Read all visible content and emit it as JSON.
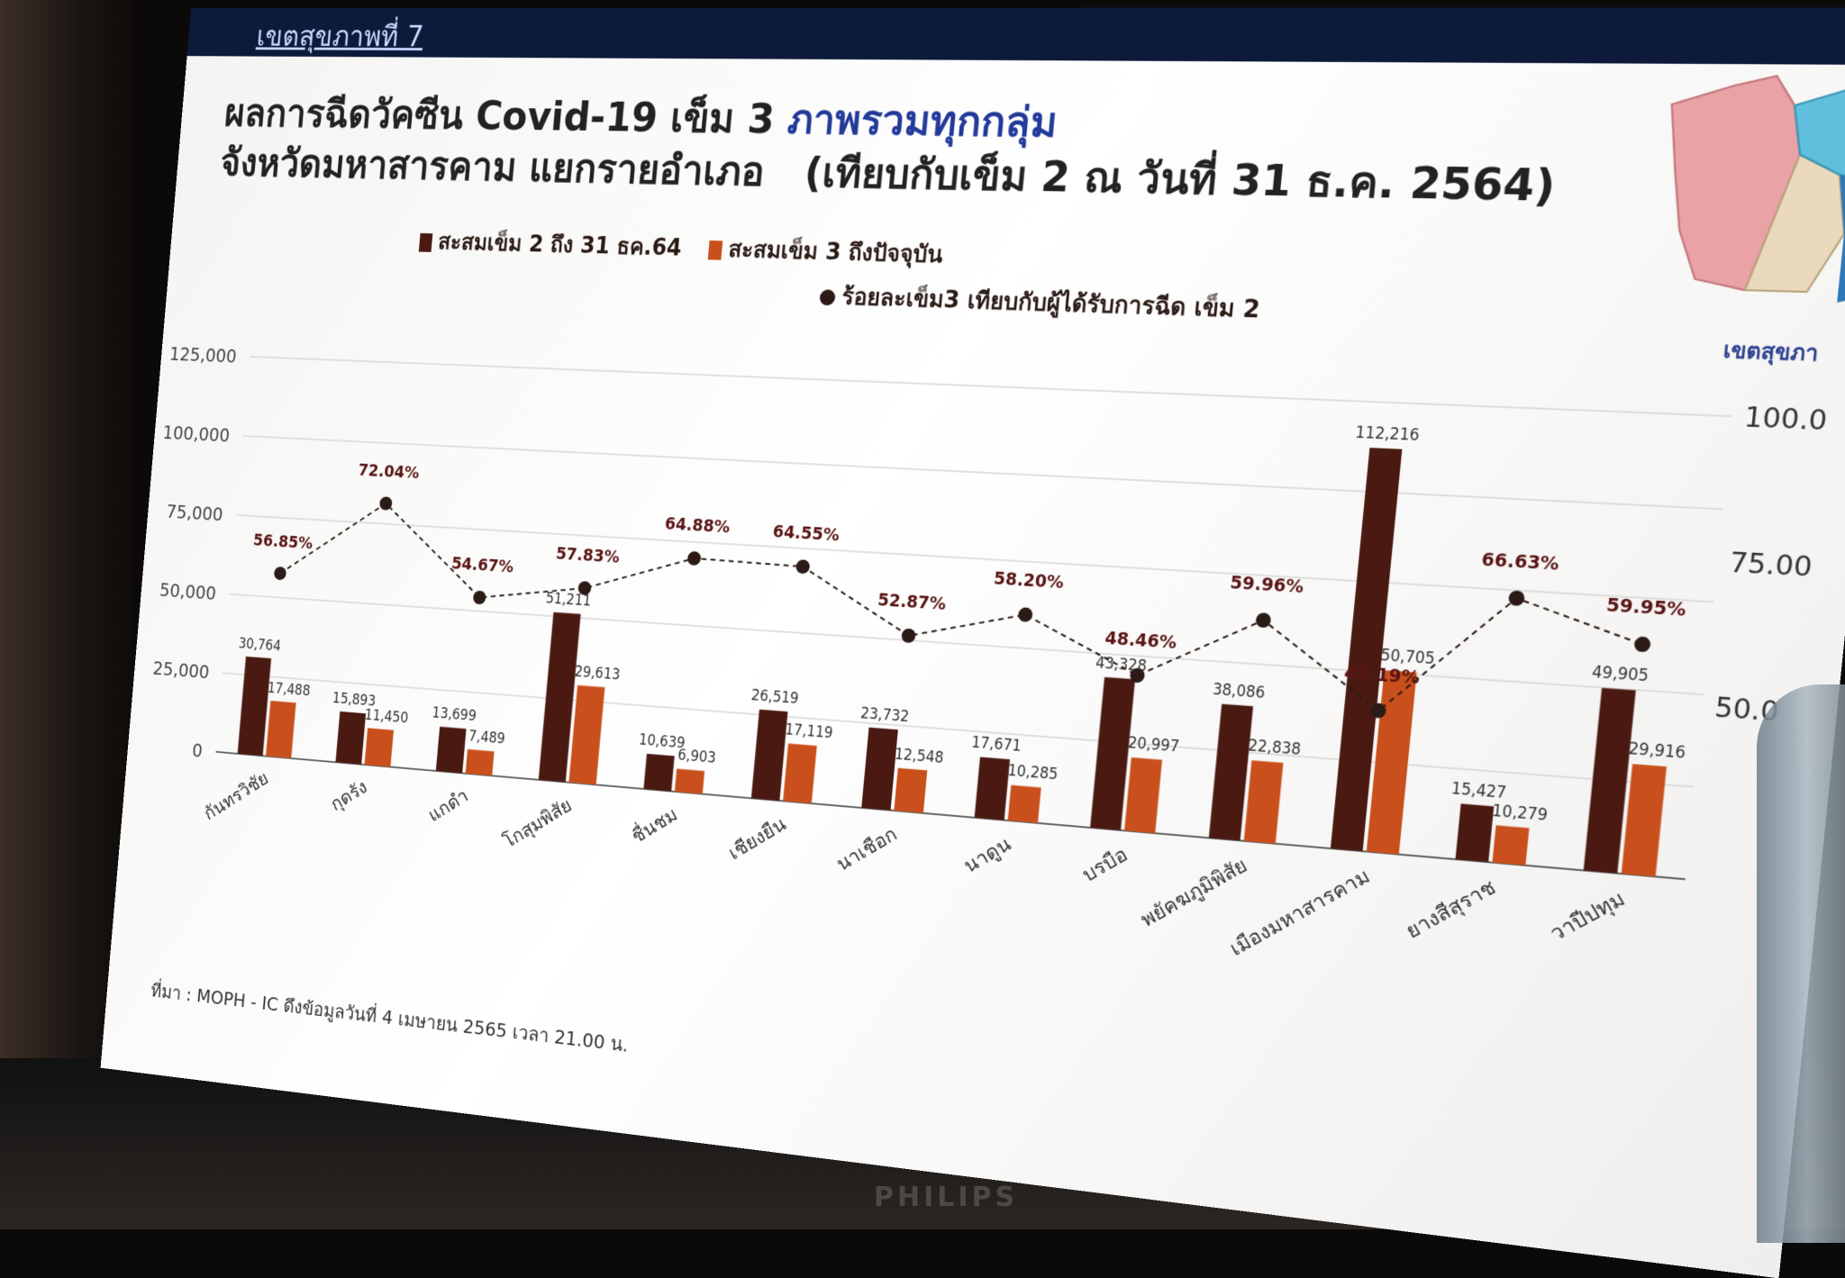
{
  "header": {
    "banner_text": "เขตสุขภาพที่ 7"
  },
  "title": {
    "line1_a": "ผลการฉีดวัคซีน Covid-19 เข็ม 3 ",
    "line1_b": "ภาพรวมทุกกลุ่ม",
    "line2": "จังหวัดมหาสารคาม  แยกรายอำเภอ",
    "note": "(เทียบกับเข็ม 2 ณ วันที่ 31 ธ.ค. 2564)"
  },
  "map_label": "เขตสุขภา",
  "source_note": "ที่มา : MOPH - IC ดึงข้อมูลวันที่ 4 เมษายน 2565 เวลา 21.00 น.",
  "colors": {
    "dose2": "#4a1a12",
    "dose3": "#c9501c",
    "line": "#2b1a15",
    "pct_text": "#5a1515"
  },
  "chart_data": {
    "type": "bar",
    "categories": [
      "กันทรวิชัย",
      "กุดรัง",
      "แกดำ",
      "โกสุมพิสัย",
      "ชื่นชม",
      "เชียงยืน",
      "นาเชือก",
      "นาดูน",
      "บรบือ",
      "พยัคฆภูมิพิสัย",
      "เมืองมหาสารคาม",
      "ยางสีสุราช",
      "วาปีปทุม"
    ],
    "series": [
      {
        "name": "สะสมเข็ม 2  ถึง 31 ธค.64",
        "values": [
          30764,
          15893,
          13699,
          51211,
          10639,
          26519,
          23732,
          17671,
          43328,
          38086,
          112216,
          15427,
          49905
        ]
      },
      {
        "name": "สะสมเข็ม 3 ถึงปัจจุบัน",
        "values": [
          17488,
          11450,
          7489,
          29613,
          6903,
          17119,
          12548,
          10285,
          20997,
          22838,
          50705,
          10279,
          29916
        ]
      },
      {
        "name": "ร้อยละเข็ม3 เทียบกับผู้ได้รับการฉีด เข็ม 2",
        "values": [
          56.85,
          72.04,
          54.67,
          57.83,
          64.88,
          64.55,
          52.87,
          58.2,
          48.46,
          59.96,
          45.19,
          66.63,
          59.95
        ],
        "labels": [
          "56.85%",
          "72.04%",
          "54.67%",
          "57.83%",
          "64.88%",
          "64.55%",
          "52.87%",
          "58.20%",
          "48.46%",
          "59.96%",
          "45.19%",
          "66.63%",
          "59.95%"
        ]
      }
    ],
    "value_labels_dose2": [
      "30,764",
      "15,893",
      "13,699",
      "51,211",
      "10,639",
      "26,519",
      "23,732",
      "17,671",
      "43,328",
      "38,086",
      "112,216",
      "15,427",
      "49,905"
    ],
    "value_labels_dose3": [
      "17,488",
      "11,450",
      "7,489",
      "29,613",
      "6,903",
      "17,119",
      "12,548",
      "10,285",
      "20,997",
      "22,838",
      "50,705",
      "10,279",
      "29,916"
    ],
    "y_ticks": [
      "125,000",
      "100,000",
      "75,000",
      "50,000",
      "25,000",
      "0"
    ],
    "y_right_ticks": [
      "100.0",
      "75.00",
      "50.0"
    ],
    "ylim": [
      0,
      125000
    ],
    "y_right_lim": [
      20,
      100
    ],
    "grid": true,
    "legend": "top"
  }
}
